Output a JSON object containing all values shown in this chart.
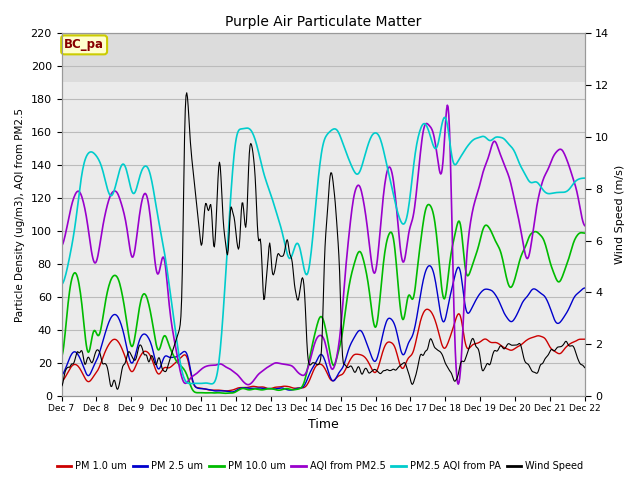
{
  "title": "Purple Air Particulate Matter",
  "xlabel": "Time",
  "ylabel_left": "Particle Density (ug/m3), AQI from PM2.5",
  "ylabel_right": "Wind Speed (m/s)",
  "ylim_left": [
    0,
    220
  ],
  "ylim_right": [
    0,
    14
  ],
  "yticks_left": [
    0,
    20,
    40,
    60,
    80,
    100,
    120,
    140,
    160,
    180,
    200,
    220
  ],
  "yticks_right": [
    0,
    2,
    4,
    6,
    8,
    10,
    12,
    14
  ],
  "xtick_labels": [
    "Dec 7",
    "Dec 8",
    "Dec 9",
    "Dec 10",
    "Dec 11",
    "Dec 12",
    "Dec 13",
    "Dec 14",
    "Dec 15",
    "Dec 16",
    "Dec 17",
    "Dec 18",
    "Dec 19",
    "Dec 20",
    "Dec 21",
    "Dec 22"
  ],
  "annotation_text": "BC_pa",
  "annotation_bg": "#FFFFCC",
  "annotation_border": "#CCCC00",
  "annotation_text_color": "#880000",
  "bg_upper": "#DCDCDC",
  "bg_lower": "#EBEBEB",
  "bg_threshold": 190,
  "grid_color": "#BBBBBB",
  "colors": {
    "pm1": "#CC0000",
    "pm25": "#0000CC",
    "pm10": "#00BB00",
    "aqi_pm25": "#9900CC",
    "aqi_pa": "#00CCCC",
    "wind": "#000000"
  },
  "legend": [
    {
      "label": "PM 1.0 um",
      "color": "#CC0000"
    },
    {
      "label": "PM 2.5 um",
      "color": "#0000CC"
    },
    {
      "label": "PM 10.0 um",
      "color": "#00BB00"
    },
    {
      "label": "AQI from PM2.5",
      "color": "#9900CC"
    },
    {
      "label": "PM2.5 AQI from PA",
      "color": "#00CCCC"
    },
    {
      "label": "Wind Speed",
      "color": "#000000"
    }
  ],
  "n_points": 720
}
